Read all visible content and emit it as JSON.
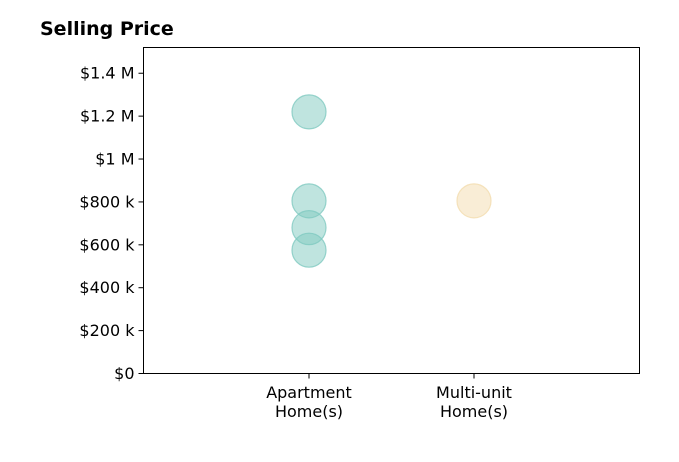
{
  "chart_data": {
    "type": "scatter",
    "title": "Selling Price",
    "xlabel": "",
    "ylabel": "",
    "categories": [
      [
        "Apartment",
        "Home(s)"
      ],
      [
        "Multi-unit",
        "Home(s)"
      ]
    ],
    "ylim": [
      0,
      1520000
    ],
    "yticks": [
      0,
      200000,
      400000,
      600000,
      800000,
      1000000,
      1200000,
      1400000
    ],
    "ytick_labels": [
      "$0",
      "$200 k",
      "$400 k",
      "$600 k",
      "$800 k",
      "$1 M",
      "$1.2 M",
      "$1.4 M"
    ],
    "grid": false,
    "series": [
      {
        "category_index": 0,
        "color": "#7fc9c0",
        "values": [
          1220000,
          805000,
          680000,
          575000
        ]
      },
      {
        "category_index": 1,
        "color": "#f3dcae",
        "values": [
          805000
        ]
      }
    ]
  }
}
